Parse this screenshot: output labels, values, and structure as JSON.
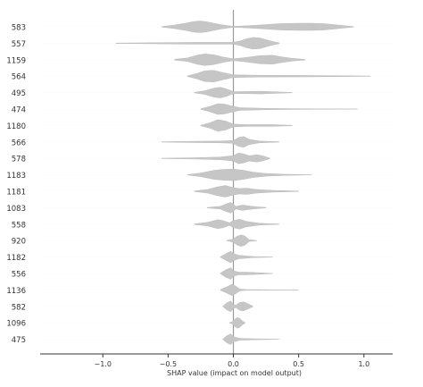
{
  "chart_data": {
    "type": "violin",
    "title": "",
    "xlabel": "SHAP value (impact on model output)",
    "ylabel": "",
    "xlim": [
      -1.48,
      1.22
    ],
    "xticks": [
      -1.0,
      -0.5,
      0.0,
      0.5,
      1.0
    ],
    "xtick_labels": [
      "−1.0",
      "−0.5",
      "0.0",
      "0.5",
      "1.0"
    ],
    "zero_line": 0.0,
    "fill_color": "#c6c6c6",
    "features": [
      {
        "name": "583",
        "x": [
          -0.55,
          -0.45,
          -0.35,
          -0.3,
          -0.25,
          -0.2,
          -0.1,
          0.0,
          0.05,
          0.2,
          0.35,
          0.5,
          0.6,
          0.7,
          0.8,
          0.92
        ],
        "w": [
          0.3,
          2,
          4.5,
          6,
          6.5,
          5.5,
          2.5,
          0.5,
          0.8,
          2,
          3.5,
          4,
          4,
          3.5,
          2,
          0.3
        ]
      },
      {
        "name": "557",
        "x": [
          -0.9,
          -0.6,
          -0.3,
          -0.1,
          0.0,
          0.05,
          0.1,
          0.15,
          0.2,
          0.25,
          0.3,
          0.35
        ],
        "w": [
          0.2,
          0.6,
          1,
          1,
          1,
          2.5,
          5,
          6.5,
          6,
          4,
          2,
          0.5
        ]
      },
      {
        "name": "1159",
        "x": [
          -0.45,
          -0.35,
          -0.28,
          -0.22,
          -0.15,
          -0.08,
          0.0,
          0.1,
          0.2,
          0.3,
          0.38,
          0.45,
          0.55
        ],
        "w": [
          0.5,
          2,
          5,
          6.5,
          5.5,
          3,
          1,
          2.5,
          4.5,
          5,
          3,
          1.5,
          0.3
        ]
      },
      {
        "name": "564",
        "x": [
          -0.35,
          -0.28,
          -0.22,
          -0.15,
          -0.08,
          0.0,
          0.2,
          0.5,
          0.8,
          1.05
        ],
        "w": [
          0.5,
          3,
          6,
          6.5,
          4,
          1.5,
          1,
          0.8,
          0.5,
          0.2
        ]
      },
      {
        "name": "495",
        "x": [
          -0.3,
          -0.22,
          -0.15,
          -0.1,
          -0.05,
          0.0,
          0.1,
          0.2,
          0.3,
          0.45
        ],
        "w": [
          0.3,
          2,
          5,
          6,
          4,
          1,
          1.2,
          1.5,
          1,
          0.2
        ]
      },
      {
        "name": "474",
        "x": [
          -0.25,
          -0.18,
          -0.12,
          -0.07,
          0.0,
          0.05,
          0.3,
          0.6,
          0.95
        ],
        "w": [
          0.3,
          3,
          6,
          5.5,
          3,
          1.5,
          0.6,
          0.3,
          0.1
        ]
      },
      {
        "name": "1180",
        "x": [
          -0.25,
          -0.18,
          -0.12,
          -0.06,
          0.0,
          0.1,
          0.3,
          0.45
        ],
        "w": [
          0.3,
          3,
          6.5,
          5,
          1.5,
          1,
          1,
          0.2
        ]
      },
      {
        "name": "566",
        "x": [
          -0.55,
          -0.3,
          -0.1,
          0.0,
          0.04,
          0.08,
          0.12,
          0.2,
          0.35
        ],
        "w": [
          0.2,
          0.7,
          1,
          1.5,
          5,
          6,
          3,
          1,
          0.2
        ]
      },
      {
        "name": "578",
        "x": [
          -0.55,
          -0.3,
          -0.1,
          0.0,
          0.04,
          0.08,
          0.12,
          0.18,
          0.22,
          0.28
        ],
        "w": [
          0.2,
          0.7,
          1.5,
          3,
          6,
          5,
          3,
          4,
          3,
          0.3
        ]
      },
      {
        "name": "1183",
        "x": [
          -0.35,
          -0.25,
          -0.15,
          -0.08,
          0.0,
          0.08,
          0.15,
          0.25,
          0.4,
          0.6
        ],
        "w": [
          0.3,
          2,
          5,
          6,
          6.5,
          5,
          3,
          1.5,
          0.6,
          0.1
        ]
      },
      {
        "name": "1181",
        "x": [
          -0.3,
          -0.2,
          -0.12,
          -0.06,
          0.0,
          0.05,
          0.1,
          0.18,
          0.3,
          0.5
        ],
        "w": [
          0.3,
          2,
          5,
          6.5,
          4,
          3,
          3.5,
          2,
          1,
          0.2
        ]
      },
      {
        "name": "1083",
        "x": [
          -0.2,
          -0.1,
          -0.05,
          -0.02,
          0.02,
          0.07,
          0.12,
          0.18,
          0.25
        ],
        "w": [
          0.3,
          1.5,
          4.5,
          6,
          1.5,
          3,
          2,
          1,
          0.3
        ]
      },
      {
        "name": "558",
        "x": [
          -0.3,
          -0.2,
          -0.12,
          -0.08,
          -0.03,
          0.0,
          0.05,
          0.1,
          0.2,
          0.35
        ],
        "w": [
          0.3,
          2,
          5,
          4,
          1.5,
          4,
          5.5,
          3,
          1,
          0.2
        ]
      },
      {
        "name": "920",
        "x": [
          -0.05,
          -0.02,
          0.0,
          0.03,
          0.06,
          0.09,
          0.12,
          0.18
        ],
        "w": [
          0.3,
          1,
          2,
          5,
          6.5,
          5,
          1,
          0.1
        ]
      },
      {
        "name": "1182",
        "x": [
          -0.1,
          -0.06,
          -0.02,
          0.0,
          0.04,
          0.08,
          0.15,
          0.3
        ],
        "w": [
          0.3,
          3.5,
          6.5,
          4,
          2,
          1.5,
          0.6,
          0.1
        ]
      },
      {
        "name": "556",
        "x": [
          -0.1,
          -0.06,
          -0.02,
          0.0,
          0.04,
          0.1,
          0.2,
          0.3
        ],
        "w": [
          0.3,
          4,
          6.5,
          3,
          1.5,
          1.5,
          0.8,
          0.1
        ]
      },
      {
        "name": "1136",
        "x": [
          -0.1,
          -0.05,
          -0.01,
          0.02,
          0.05,
          0.1,
          0.3,
          0.5
        ],
        "w": [
          0.3,
          3.5,
          6.5,
          4,
          1,
          0.4,
          0.2,
          0.1
        ]
      },
      {
        "name": "582",
        "x": [
          -0.08,
          -0.05,
          -0.02,
          0.0,
          0.02,
          0.05,
          0.08,
          0.11,
          0.15
        ],
        "w": [
          0.3,
          4,
          6,
          2,
          1.5,
          4.5,
          5,
          3,
          0.3
        ]
      },
      {
        "name": "1096",
        "x": [
          -0.03,
          -0.01,
          0.01,
          0.03,
          0.05,
          0.07,
          0.09
        ],
        "w": [
          0.3,
          1,
          4,
          6,
          5,
          2,
          0.3
        ]
      },
      {
        "name": "475",
        "x": [
          -0.08,
          -0.05,
          -0.02,
          0.0,
          0.05,
          0.15,
          0.25,
          0.35
        ],
        "w": [
          0.3,
          4,
          6,
          3,
          1,
          0.6,
          0.3,
          0.1
        ]
      }
    ]
  }
}
